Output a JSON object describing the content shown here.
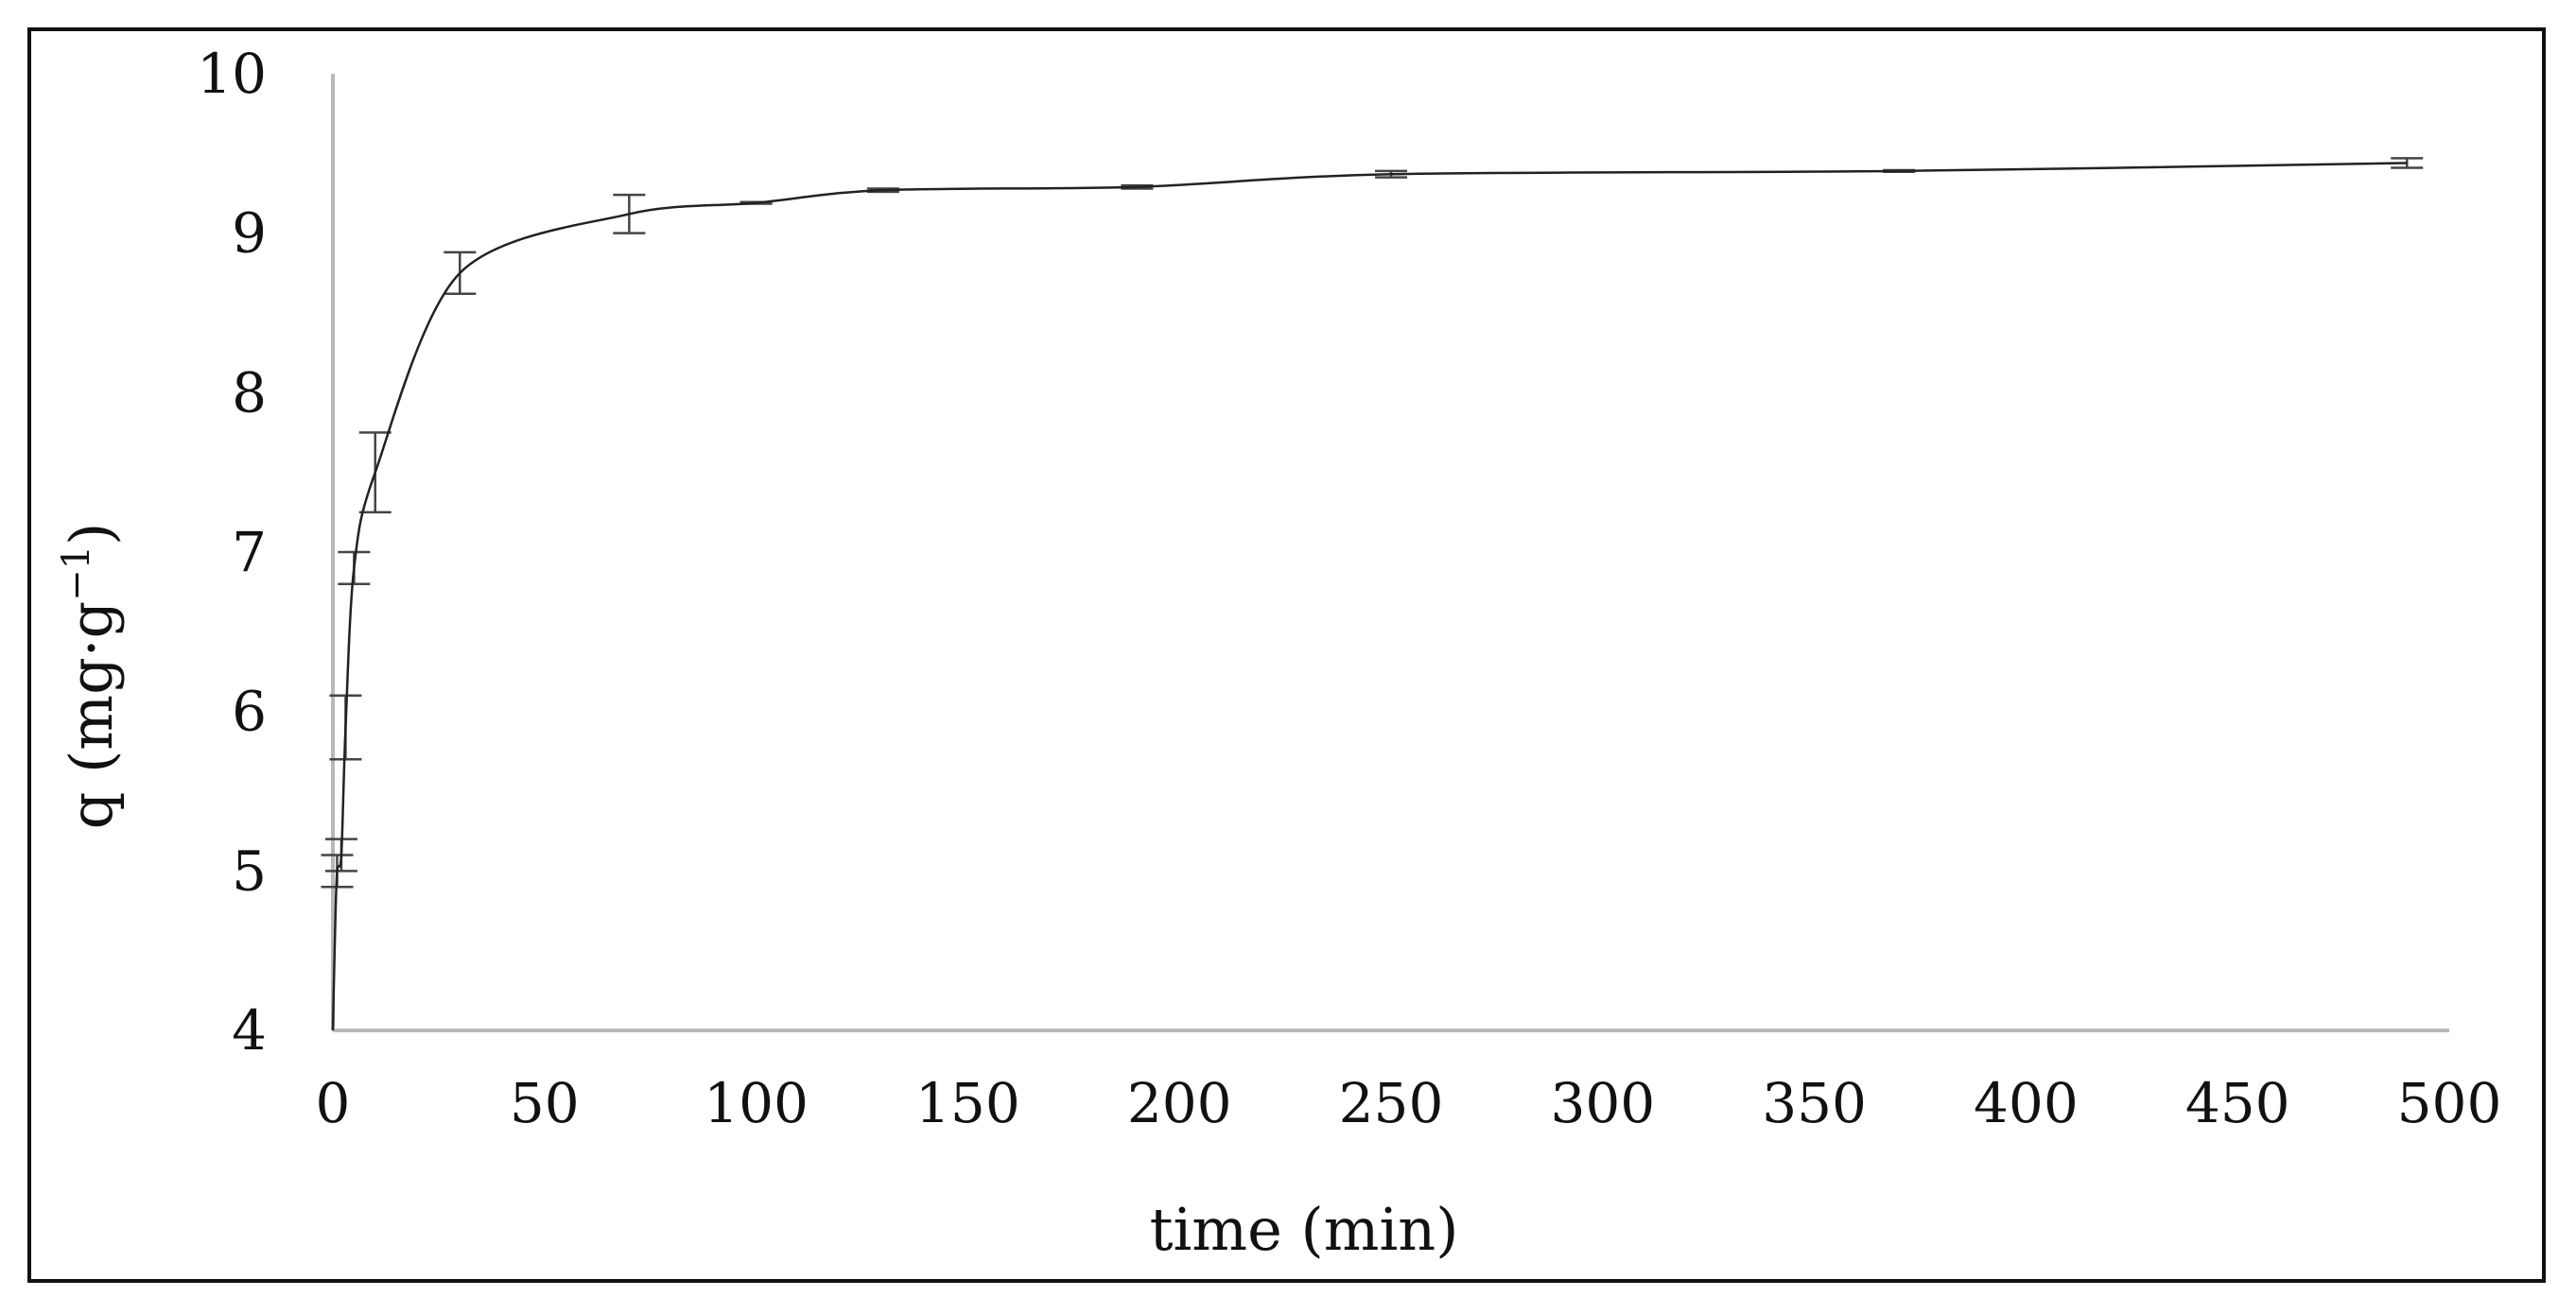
{
  "chart_data": {
    "type": "line",
    "title": "",
    "xlabel": "time (min)",
    "ylabel_main": "q (mg·g",
    "ylabel_sup": "−1",
    "ylabel_close": ")",
    "xlim": [
      0,
      500
    ],
    "ylim": [
      4,
      10
    ],
    "xticks": [
      0,
      50,
      100,
      150,
      200,
      250,
      300,
      350,
      400,
      450,
      500
    ],
    "yticks": [
      4,
      5,
      6,
      7,
      8,
      9,
      10
    ],
    "grid": false,
    "legend": "none",
    "colors": {
      "line": "#222222",
      "axis": "#b8b8b8",
      "error_bar": "#444444"
    },
    "series": [
      {
        "x": [
          0,
          0.5,
          1,
          2,
          3,
          5,
          10,
          30,
          70,
          100,
          130,
          190,
          250,
          370,
          490
        ],
        "y": [
          4.0,
          4.6,
          5.0,
          5.1,
          5.9,
          6.9,
          7.5,
          8.75,
          9.12,
          9.19,
          9.27,
          9.29,
          9.37,
          9.39,
          9.44
        ],
        "error": [
          0.0,
          0.0,
          0.1,
          0.1,
          0.2,
          0.1,
          0.25,
          0.13,
          0.12,
          0.005,
          0.01,
          0.01,
          0.02,
          0.005,
          0.03
        ]
      }
    ]
  }
}
